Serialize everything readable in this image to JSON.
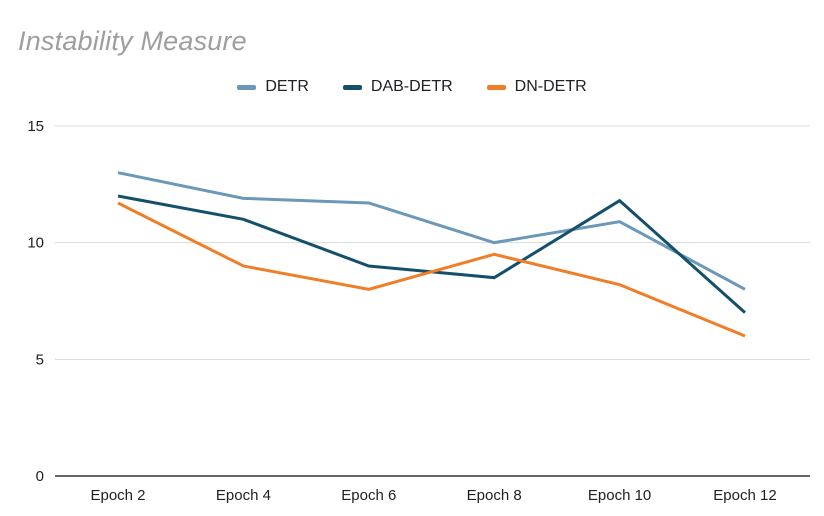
{
  "page": {
    "title": "Instability Measure"
  },
  "chart_data": {
    "type": "line",
    "title": "Instability Measure",
    "categories": [
      "Epoch 2",
      "Epoch 4",
      "Epoch 6",
      "Epoch 8",
      "Epoch 10",
      "Epoch 12"
    ],
    "series": [
      {
        "name": "DETR",
        "color": "#6C98B8",
        "values": [
          13,
          11.9,
          11.7,
          10,
          10.9,
          8
        ]
      },
      {
        "name": "DAB-DETR",
        "color": "#14506C",
        "values": [
          12,
          11,
          9,
          8.5,
          11.8,
          7
        ]
      },
      {
        "name": "DN-DETR",
        "color": "#F07E26",
        "values": [
          11.7,
          9,
          8,
          9.5,
          8.2,
          6
        ]
      }
    ],
    "yticks": [
      0,
      5,
      10,
      15
    ],
    "ylim": [
      0,
      15
    ],
    "grid": true,
    "legend_position": "top",
    "colors": {
      "grid": "#d9d9d9",
      "axis": "#333333",
      "title": "#9e9e9e",
      "label": "#202124"
    }
  }
}
